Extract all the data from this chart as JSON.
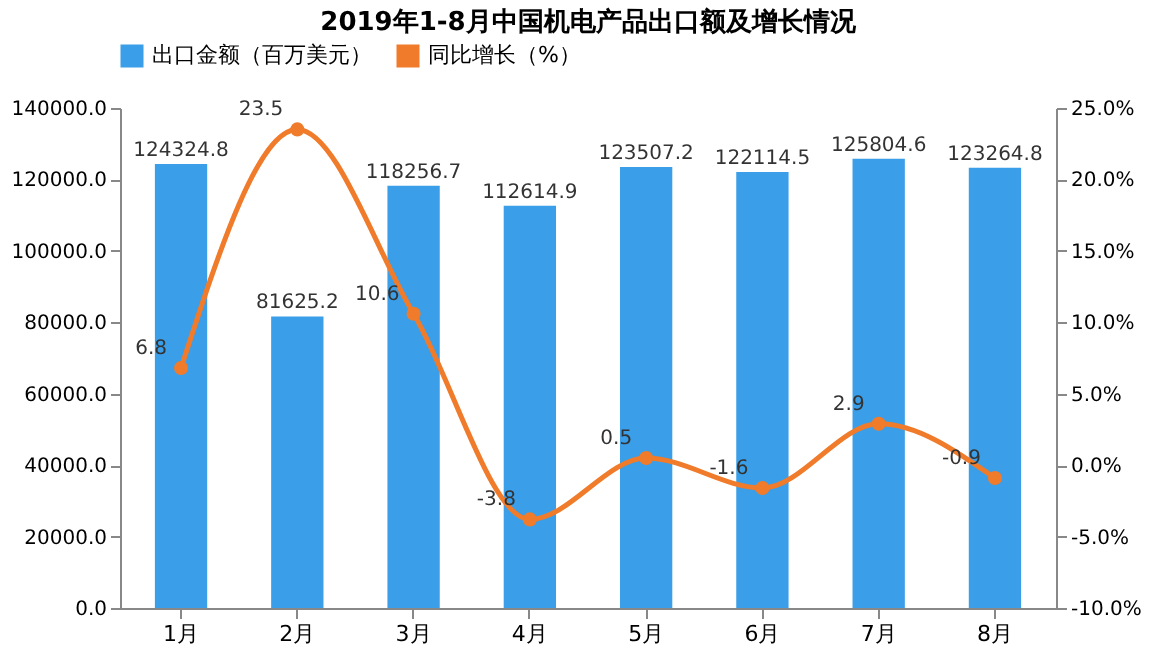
{
  "chart_data": {
    "type": "bar",
    "title": "2019年1-8月中国机电产品出口额及增长情况",
    "categories": [
      "1月",
      "2月",
      "3月",
      "4月",
      "5月",
      "6月",
      "7月",
      "8月"
    ],
    "series": [
      {
        "name": "出口金额（百万美元）",
        "color": "#3a9ee8",
        "values": [
          124324.8,
          81625.2,
          118256.7,
          112614.9,
          123507.2,
          122114.5,
          125804.6,
          123264.8
        ]
      },
      {
        "name": "同比增长（%）",
        "type": "line",
        "axis": "y2",
        "color": "#f07b2a",
        "values": [
          6.8,
          23.5,
          10.6,
          -3.8,
          0.5,
          -1.6,
          2.9,
          -0.9
        ]
      }
    ],
    "ylim": [
      0,
      140000
    ],
    "yticks": [
      {
        "value": 0,
        "label": "0.0"
      },
      {
        "value": 20000,
        "label": "20000.0"
      },
      {
        "value": 40000,
        "label": "40000.0"
      },
      {
        "value": 60000,
        "label": "60000.0"
      },
      {
        "value": 80000,
        "label": "80000.0"
      },
      {
        "value": 100000,
        "label": "100000.0"
      },
      {
        "value": 120000,
        "label": "120000.0"
      },
      {
        "value": 140000,
        "label": "140000.0"
      }
    ],
    "y2lim": [
      -10,
      25
    ],
    "y2ticks": [
      {
        "value": -10,
        "label": "-10.0%"
      },
      {
        "value": -5,
        "label": "-5.0%"
      },
      {
        "value": 0,
        "label": "0.0%"
      },
      {
        "value": 5,
        "label": "5.0%"
      },
      {
        "value": 10,
        "label": "10.0%"
      },
      {
        "value": 15,
        "label": "15.0%"
      },
      {
        "value": 20,
        "label": "20.0%"
      },
      {
        "value": 25,
        "label": "25.0%"
      }
    ],
    "data_labels": true,
    "legend": "top",
    "marker": "circle",
    "grid": false
  }
}
